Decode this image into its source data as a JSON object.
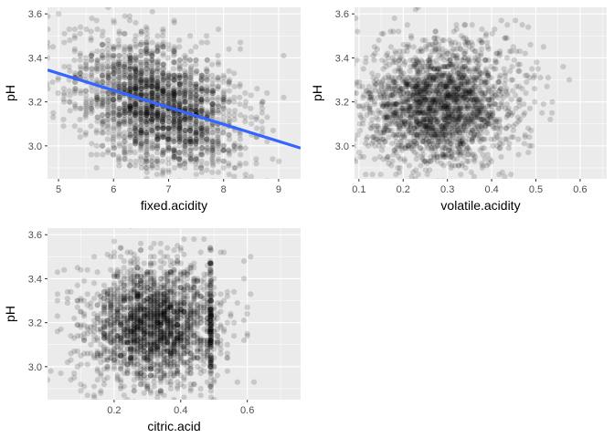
{
  "colors": {
    "panel_bg": "#EBEBEB",
    "grid_major": "#FFFFFF",
    "point": "#000000",
    "smooth_line": "#3366FF",
    "tick_text": "#4D4D4D"
  },
  "chart_data": [
    {
      "type": "scatter",
      "xlabel": "fixed.acidity",
      "ylabel": "pH",
      "xlim": [
        4.8,
        9.4
      ],
      "ylim": [
        2.85,
        3.63
      ],
      "x_ticks": [
        5,
        6,
        7,
        8,
        9
      ],
      "y_ticks": [
        3.0,
        3.2,
        3.4,
        3.6
      ],
      "grid": true,
      "point_alpha": 0.15,
      "cloud": {
        "n": 2200,
        "x_center": 6.8,
        "x_sd": 0.75,
        "y_center": 3.19,
        "y_sd": 0.14,
        "slope": -0.075,
        "x_mode": "round1"
      },
      "smooth_line": {
        "method": "lm",
        "x": [
          4.8,
          9.4
        ],
        "y": [
          3.345,
          2.99
        ]
      }
    },
    {
      "type": "scatter",
      "xlabel": "volatile.acidity",
      "ylabel": "pH",
      "xlim": [
        0.09,
        0.66
      ],
      "ylim": [
        2.85,
        3.63
      ],
      "x_ticks": [
        0.1,
        0.2,
        0.3,
        0.4,
        0.5,
        0.6
      ],
      "y_ticks": [
        3.0,
        3.2,
        3.4,
        3.6
      ],
      "grid": true,
      "point_alpha": 0.15,
      "cloud": {
        "n": 2200,
        "x_center": 0.27,
        "x_sd": 0.085,
        "y_center": 3.19,
        "y_sd": 0.14,
        "slope": 0.0,
        "x_mode": "continuous"
      }
    },
    {
      "type": "scatter",
      "xlabel": "citric.acid",
      "ylabel": "pH",
      "xlim": [
        0.0,
        0.76
      ],
      "ylim": [
        2.85,
        3.63
      ],
      "x_ticks": [
        0.2,
        0.4,
        0.6
      ],
      "y_ticks": [
        3.0,
        3.2,
        3.4,
        3.6
      ],
      "grid": true,
      "point_alpha": 0.15,
      "cloud": {
        "n": 2200,
        "x_center": 0.32,
        "x_sd": 0.1,
        "y_center": 3.19,
        "y_sd": 0.14,
        "slope": 0.0,
        "x_mode": "round2",
        "spike_x": 0.49,
        "spike_n": 160
      }
    }
  ]
}
